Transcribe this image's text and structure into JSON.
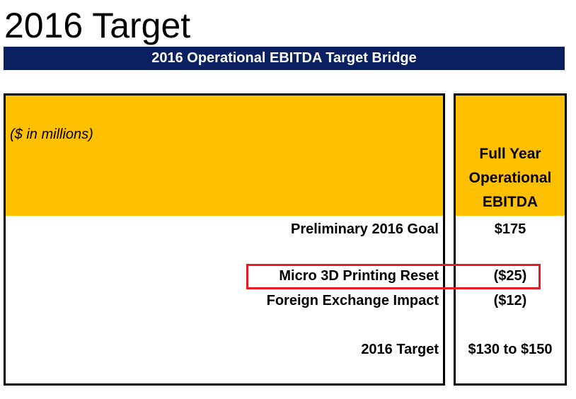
{
  "title": "2016 Target",
  "banner": "2016 Operational EBITDA Target Bridge",
  "table": {
    "units_note": "($ in millions)",
    "column_header": [
      "Full Year",
      "Operational",
      "EBITDA"
    ],
    "rows": [
      {
        "label": "Preliminary 2016 Goal",
        "value": "$175"
      },
      {
        "label": "Micro 3D Printing Reset",
        "value": "($25)"
      },
      {
        "label": "Foreign Exchange Impact",
        "value": "($12)"
      },
      {
        "label": "2016 Target",
        "value": "$130 to $150"
      }
    ]
  },
  "colors": {
    "banner_bg": "#0b2060",
    "header_fill": "#ffc000",
    "highlight": "#e31b23"
  }
}
